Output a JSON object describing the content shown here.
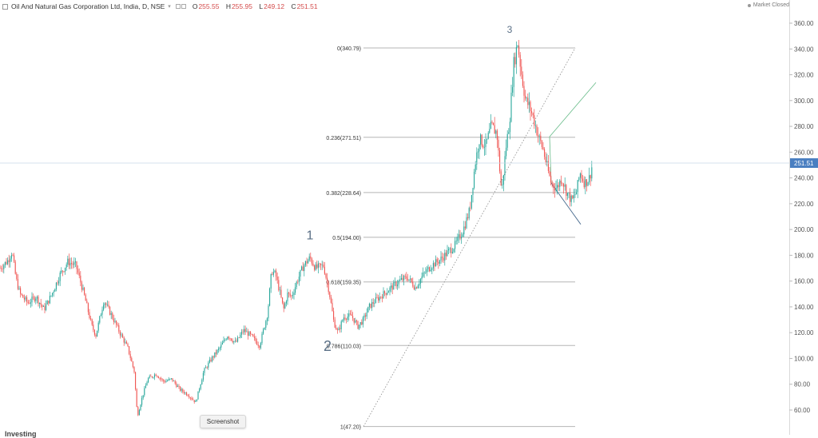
{
  "header": {
    "title": "Oil And Natural Gas Corporation Ltd, India, D, NSE",
    "ohlc": [
      {
        "k": "O",
        "v": "255.55"
      },
      {
        "k": "H",
        "v": "255.95"
      },
      {
        "k": "L",
        "v": "249.12"
      },
      {
        "k": "C",
        "v": "251.51"
      }
    ]
  },
  "status": {
    "market": "Market Closed"
  },
  "screenshot_label": "Screenshot",
  "logo_text": "Investing",
  "colors": {
    "up": "#26a69a",
    "down": "#ef5350",
    "fib": "#b5b5b5",
    "price_bg": "#4a7fc1",
    "wave_label": "#5a6f86"
  },
  "chart_data": {
    "type": "candlestick",
    "title": "Oil And Natural Gas Corporation Ltd, India, D, NSE",
    "ylim": [
      48,
      368
    ],
    "y_ticks": [
      "360.00",
      "340.00",
      "320.00",
      "300.00",
      "280.00",
      "260.00",
      "240.00",
      "220.00",
      "200.00",
      "180.00",
      "160.00",
      "140.00",
      "120.00",
      "100.00",
      "80.00",
      "60.00"
    ],
    "last_price": "251.51",
    "fibonacci": [
      {
        "label": "0(340.79)",
        "level": 340.79
      },
      {
        "label": "0.236(271.51)",
        "level": 271.51
      },
      {
        "label": "0.382(228.64)",
        "level": 228.64
      },
      {
        "label": "0.5(194.00)",
        "level": 194.0
      },
      {
        "label": "0.618(159.35)",
        "level": 159.35
      },
      {
        "label": "0.786(110.03)",
        "level": 110.03
      },
      {
        "label": "1(47.20)",
        "level": 47.2
      }
    ],
    "wave_labels": [
      {
        "text": "1",
        "price": 190
      },
      {
        "text": "2",
        "price": 117
      },
      {
        "text": "3",
        "price": 345
      }
    ],
    "price_path": [
      [
        0,
        170
      ],
      [
        10,
        176
      ],
      [
        15,
        183
      ],
      [
        20,
        162
      ],
      [
        25,
        150
      ],
      [
        35,
        143
      ],
      [
        45,
        148
      ],
      [
        55,
        138
      ],
      [
        65,
        150
      ],
      [
        75,
        165
      ],
      [
        85,
        175
      ],
      [
        95,
        172
      ],
      [
        105,
        150
      ],
      [
        115,
        125
      ],
      [
        120,
        118
      ],
      [
        130,
        145
      ],
      [
        140,
        133
      ],
      [
        150,
        120
      ],
      [
        160,
        108
      ],
      [
        168,
        90
      ],
      [
        172,
        55
      ],
      [
        178,
        70
      ],
      [
        185,
        84
      ],
      [
        195,
        88
      ],
      [
        205,
        82
      ],
      [
        215,
        84
      ],
      [
        225,
        76
      ],
      [
        235,
        72
      ],
      [
        245,
        66
      ],
      [
        255,
        90
      ],
      [
        265,
        100
      ],
      [
        275,
        108
      ],
      [
        285,
        118
      ],
      [
        295,
        112
      ],
      [
        305,
        122
      ],
      [
        315,
        117
      ],
      [
        325,
        110
      ],
      [
        335,
        135
      ],
      [
        340,
        168
      ],
      [
        345,
        165
      ],
      [
        350,
        152
      ],
      [
        355,
        138
      ],
      [
        360,
        150
      ],
      [
        365,
        148
      ],
      [
        372,
        160
      ],
      [
        380,
        172
      ],
      [
        388,
        178
      ],
      [
        395,
        170
      ],
      [
        405,
        172
      ],
      [
        412,
        152
      ],
      [
        418,
        128
      ],
      [
        423,
        120
      ],
      [
        430,
        132
      ],
      [
        440,
        133
      ],
      [
        448,
        125
      ],
      [
        455,
        130
      ],
      [
        462,
        140
      ],
      [
        470,
        145
      ],
      [
        480,
        150
      ],
      [
        490,
        155
      ],
      [
        500,
        160
      ],
      [
        510,
        163
      ],
      [
        520,
        155
      ],
      [
        530,
        165
      ],
      [
        540,
        172
      ],
      [
        550,
        176
      ],
      [
        560,
        182
      ],
      [
        570,
        188
      ],
      [
        580,
        200
      ],
      [
        588,
        215
      ],
      [
        595,
        252
      ],
      [
        600,
        270
      ],
      [
        608,
        265
      ],
      [
        615,
        280
      ],
      [
        622,
        275
      ],
      [
        628,
        228
      ],
      [
        633,
        262
      ],
      [
        638,
        285
      ],
      [
        643,
        328
      ],
      [
        648,
        345
      ],
      [
        653,
        320
      ],
      [
        658,
        300
      ],
      [
        663,
        295
      ],
      [
        668,
        286
      ],
      [
        674,
        272
      ],
      [
        680,
        262
      ],
      [
        685,
        248
      ],
      [
        690,
        236
      ],
      [
        697,
        232
      ],
      [
        703,
        240
      ],
      [
        710,
        228
      ],
      [
        716,
        222
      ],
      [
        722,
        230
      ],
      [
        726,
        244
      ],
      [
        732,
        236
      ],
      [
        738,
        240
      ],
      [
        742,
        252
      ]
    ]
  }
}
